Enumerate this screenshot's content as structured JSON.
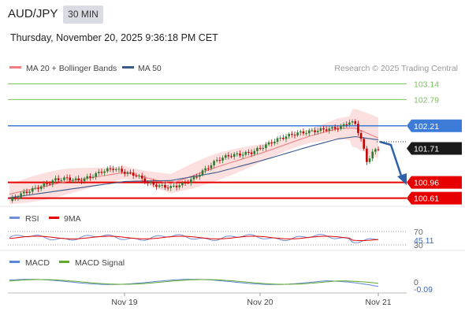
{
  "header": {
    "pair": "AUD/JPY",
    "timeframe": "30 MIN",
    "datetime": "Thursday, November 20, 2025 9:36:18 PM CET"
  },
  "legend": {
    "ma20_label": "MA 20 + Bollinger Bands",
    "ma50_label": "MA 50",
    "copyright": "Research © 2025 Trading Central",
    "rsi_label": "RSI",
    "rsi_ma_label": "9MA",
    "macd_label": "MACD",
    "macd_signal_label": "MACD Signal"
  },
  "colors": {
    "ma20": "#f08080",
    "ma50": "#3a5a8c",
    "band": "#fcd9d9",
    "support": "#e60000",
    "target": "#3d7bd9",
    "resistance": "#7fc060",
    "rsi": "#6f8fd6",
    "rsi_ma": "#e60000",
    "macd": "#5a85d8",
    "signal": "#5faa2a",
    "up": "#2f7a2f",
    "down": "#c40000"
  },
  "chart_data": {
    "type": "line",
    "main": {
      "y_range": [
        100.5,
        103.25
      ],
      "levels": [
        {
          "value": 103.14,
          "label": "103.14",
          "kind": "resistance"
        },
        {
          "value": 102.79,
          "label": "102.79",
          "kind": "resistance"
        },
        {
          "value": 102.21,
          "label": "102.21",
          "kind": "pivot"
        },
        {
          "value": 101.71,
          "label": "101.71",
          "kind": "last"
        },
        {
          "value": 100.96,
          "label": "100.96",
          "kind": "support"
        },
        {
          "value": 100.61,
          "label": "100.61",
          "kind": "support"
        }
      ],
      "approx_close_path": [
        [
          0,
          100.55
        ],
        [
          4,
          100.7
        ],
        [
          8,
          100.8
        ],
        [
          12,
          100.9
        ],
        [
          16,
          101.02
        ],
        [
          20,
          101.05
        ],
        [
          24,
          101.0
        ],
        [
          28,
          101.08
        ],
        [
          32,
          101.2
        ],
        [
          36,
          101.27
        ],
        [
          40,
          101.18
        ],
        [
          44,
          101.12
        ],
        [
          48,
          100.95
        ],
        [
          52,
          100.88
        ],
        [
          56,
          100.85
        ],
        [
          60,
          100.92
        ],
        [
          64,
          101.05
        ],
        [
          68,
          101.25
        ],
        [
          72,
          101.45
        ],
        [
          76,
          101.55
        ],
        [
          80,
          101.58
        ],
        [
          84,
          101.62
        ],
        [
          88,
          101.75
        ],
        [
          92,
          101.88
        ],
        [
          96,
          101.98
        ],
        [
          100,
          102.05
        ],
        [
          104,
          102.08
        ],
        [
          108,
          102.12
        ],
        [
          112,
          102.15
        ],
        [
          115,
          102.18
        ],
        [
          118,
          102.3
        ],
        [
          120,
          102.25
        ],
        [
          122,
          101.92
        ],
        [
          124,
          101.42
        ],
        [
          126,
          101.62
        ],
        [
          128,
          101.71
        ]
      ],
      "approx_ma20": [
        [
          0,
          100.7
        ],
        [
          20,
          100.98
        ],
        [
          40,
          101.18
        ],
        [
          56,
          100.93
        ],
        [
          72,
          101.3
        ],
        [
          88,
          101.62
        ],
        [
          104,
          101.98
        ],
        [
          114,
          102.15
        ],
        [
          120,
          102.16
        ],
        [
          128,
          101.94
        ]
      ],
      "approx_ma50": [
        [
          0,
          100.62
        ],
        [
          20,
          100.8
        ],
        [
          40,
          100.98
        ],
        [
          56,
          101.0
        ],
        [
          72,
          101.18
        ],
        [
          88,
          101.45
        ],
        [
          104,
          101.75
        ],
        [
          114,
          101.92
        ],
        [
          120,
          101.97
        ],
        [
          128,
          101.9
        ]
      ]
    },
    "rsi": {
      "ticks": [
        "70",
        "30"
      ],
      "last_value": "45.11"
    },
    "macd": {
      "ticks": [
        "0"
      ],
      "last_value": "-0.09"
    },
    "x_labels": [
      "Nov 19",
      "Nov 20",
      "Nov 21"
    ]
  }
}
